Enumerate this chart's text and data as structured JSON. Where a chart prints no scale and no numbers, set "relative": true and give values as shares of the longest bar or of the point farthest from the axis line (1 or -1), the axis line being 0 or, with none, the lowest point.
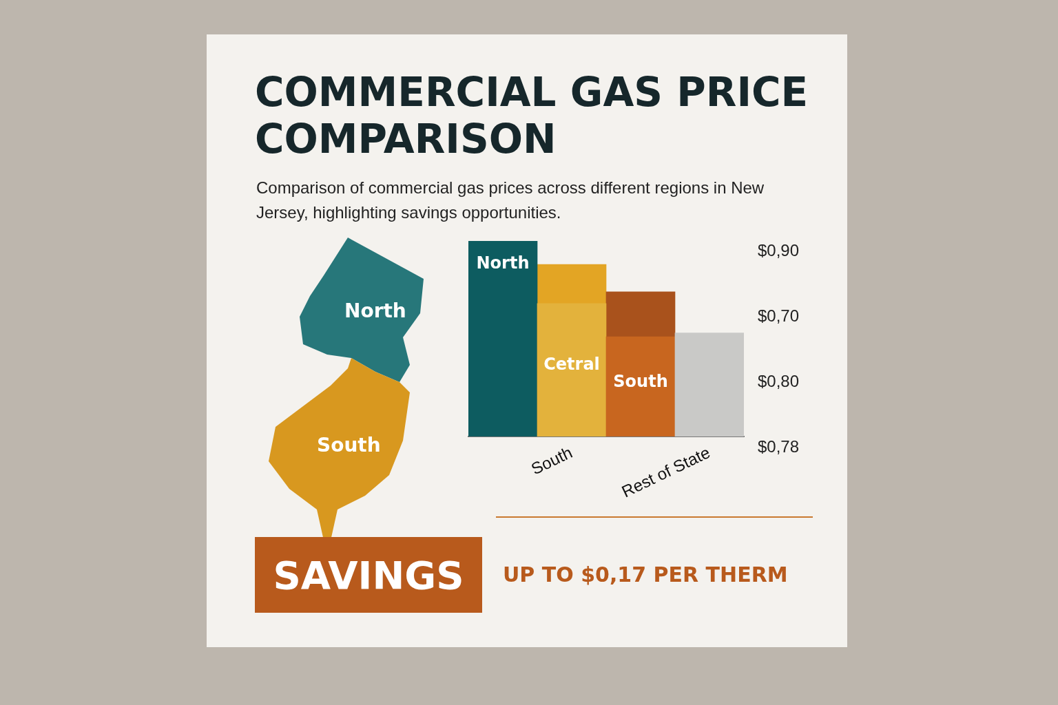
{
  "chart_data": {
    "type": "bar",
    "title": "COMMERCIAL GAS PRICE COMPARISON",
    "subtitle": "Comparison of commercial gas prices across different regions in New Jersey, highlighting savings opportunities.",
    "categories": [
      null,
      "South",
      null,
      "Rest of State"
    ],
    "stacked": true,
    "relative": true,
    "series": [
      {
        "colors": [
          "#0d5c60",
          "#e3b23c",
          "#c8661f",
          "#c9c9c7"
        ],
        "values": [
          1,
          0.68,
          0.51,
          0.53
        ]
      },
      {
        "colors": [
          "#0d5c60",
          "#e3a524",
          "#a9521c",
          "#c9c9c7"
        ],
        "values": [
          null,
          0.2,
          0.23,
          null
        ]
      }
    ],
    "annotations": [
      "North",
      "South",
      "North",
      "Cetral",
      "South",
      "$0,90",
      "$0,70",
      "$0,80",
      "$0,78",
      "SAVINGS",
      "UP TO $0,17 PER THERM"
    ]
  }
}
